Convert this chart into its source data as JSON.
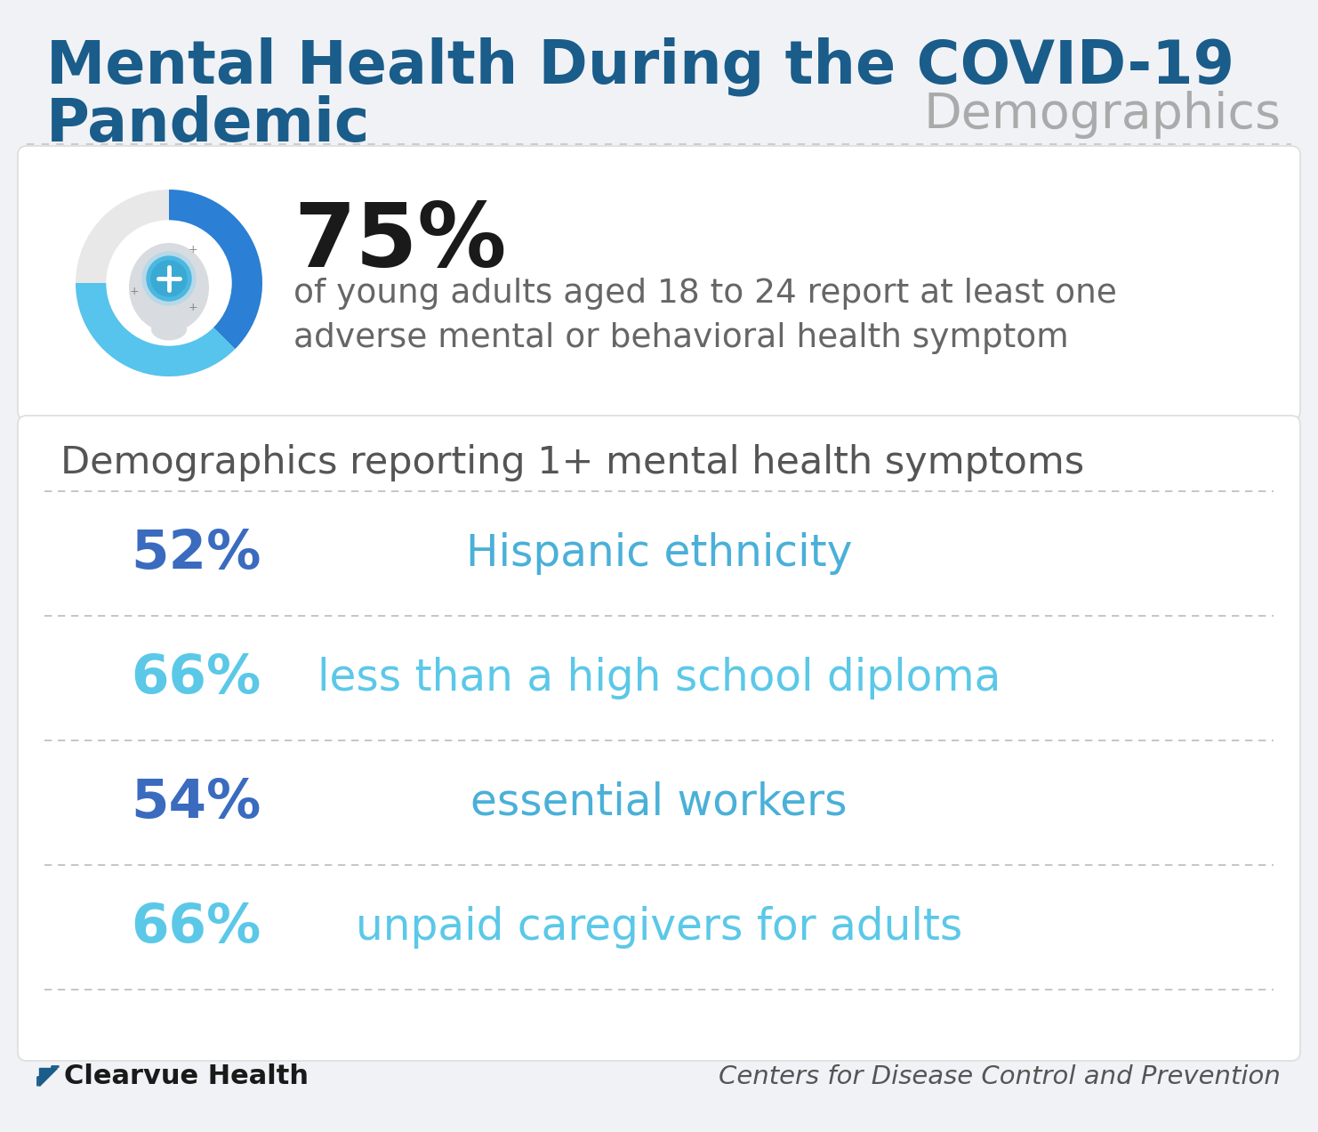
{
  "title_line1": "Mental Health During the COVID-19",
  "title_line2": "Pandemic",
  "subtitle": "Demographics",
  "title_color": "#1a5c8a",
  "subtitle_color": "#aaaaaa",
  "bg_color": "#f0f2f5",
  "card_color": "#ffffff",
  "divider_color": "#bbbbbb",
  "big_pct": "75%",
  "big_pct_color": "#1a1a1a",
  "big_desc_line1": "of young adults aged 18 to 24 report at least one",
  "big_desc_line2": "adverse mental or behavioral health symptom",
  "big_desc_color": "#666666",
  "section_title": "Demographics reporting 1+ mental health symptoms",
  "section_title_color": "#555555",
  "rows": [
    {
      "pct": "52%",
      "label": "Hispanic ethnicity",
      "pct_color": "#3a6bbf",
      "label_color": "#4ab0d8"
    },
    {
      "pct": "66%",
      "label": "less than a high school diploma",
      "pct_color": "#5bc8e8",
      "label_color": "#5bc8e8"
    },
    {
      "pct": "54%",
      "label": "essential workers",
      "pct_color": "#3a6bbf",
      "label_color": "#4ab0d8"
    },
    {
      "pct": "66%",
      "label": "unpaid caregivers for adults",
      "pct_color": "#5bc8e8",
      "label_color": "#5bc8e8"
    }
  ],
  "footer_left": "Clearvue Health",
  "footer_right": "Centers for Disease Control and Prevention",
  "footer_color": "#555555",
  "donut_blue_dark": "#2b7fd4",
  "donut_blue_light": "#56c4ec",
  "donut_gray": "#e8e8e8",
  "donut_pct": 75
}
